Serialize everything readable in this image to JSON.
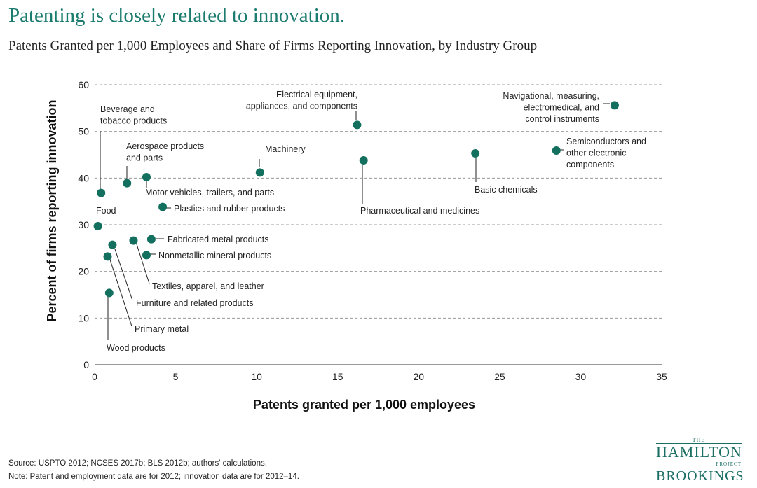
{
  "chart_data": {
    "type": "scatter",
    "title": "Patenting is closely related to innovation.",
    "subtitle": "Patents Granted per 1,000 Employees and Share of Firms Reporting Innovation, by Industry Group",
    "xlabel": "Patents granted per 1,000 employees",
    "ylabel": "Percent of firms reporting innovation",
    "xlim": [
      0,
      35
    ],
    "ylim": [
      0,
      60
    ],
    "xticks": [
      0,
      5,
      10,
      15,
      20,
      25,
      30,
      35
    ],
    "yticks": [
      0,
      10,
      20,
      30,
      40,
      50,
      60
    ],
    "grid": "horizontal dashed",
    "point_color": "#13705f",
    "points": [
      {
        "label": "Beverage and\ntobacco products",
        "x": 0.4,
        "y": 36.8
      },
      {
        "label": "Food",
        "x": 0.2,
        "y": 29.7
      },
      {
        "label": "Aerospace products\nand parts",
        "x": 2.0,
        "y": 38.9
      },
      {
        "label": "Motor vehicles, trailers, and parts",
        "x": 3.2,
        "y": 40.2
      },
      {
        "label": "Plastics and rubber products",
        "x": 4.2,
        "y": 33.8
      },
      {
        "label": "Machinery",
        "x": 10.2,
        "y": 41.2
      },
      {
        "label": "Electrical equipment,\nappliances, and components",
        "x": 16.2,
        "y": 51.4
      },
      {
        "label": "Pharmaceutical and medicines",
        "x": 16.6,
        "y": 43.8
      },
      {
        "label": "Basic chemicals",
        "x": 23.5,
        "y": 45.3
      },
      {
        "label": "Semiconductors and\nother electronic\ncomponents",
        "x": 28.5,
        "y": 45.9
      },
      {
        "label": "Navigational, measuring,\nelectromedical, and\ncontrol instruments",
        "x": 32.1,
        "y": 55.6
      },
      {
        "label": "Fabricated metal products",
        "x": 3.5,
        "y": 26.9
      },
      {
        "label": "Textiles, apparel, and leather",
        "x": 2.4,
        "y": 26.6
      },
      {
        "label": "Nonmetallic mineral products",
        "x": 3.2,
        "y": 23.5
      },
      {
        "label": "Furniture and related products",
        "x": 1.1,
        "y": 25.7
      },
      {
        "label": "Primary metal",
        "x": 0.8,
        "y": 23.2
      },
      {
        "label": "Wood products",
        "x": 0.9,
        "y": 15.4
      }
    ]
  },
  "footer": {
    "source": "Source: USPTO 2012; NCSES 2017b; BLS 2012b; authors' calculations.",
    "note": "Note: Patent and employment data are for 2012; innovation data are for 2012–14."
  },
  "logo": {
    "the": "THE",
    "hamilton": "HAMILTON",
    "project": "PROJECT",
    "brookings": "BROOKINGS"
  }
}
